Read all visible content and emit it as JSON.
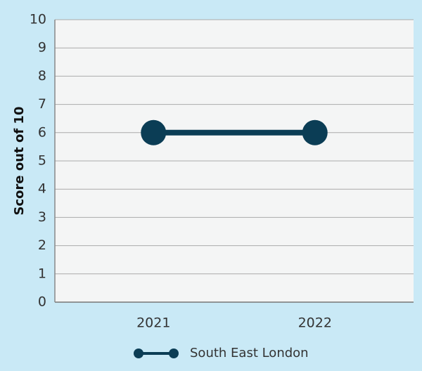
{
  "chart_data": {
    "type": "line",
    "y_label": "Score out of 10",
    "categories": [
      "2021",
      "2022"
    ],
    "series": [
      {
        "name": "South East London",
        "color": "#0b3d55",
        "values": [
          6,
          6
        ]
      }
    ],
    "ylim": [
      0,
      10
    ],
    "yticks": [
      0,
      1,
      2,
      3,
      4,
      5,
      6,
      7,
      8,
      9,
      10
    ],
    "grid": true,
    "legend": "bottom"
  }
}
